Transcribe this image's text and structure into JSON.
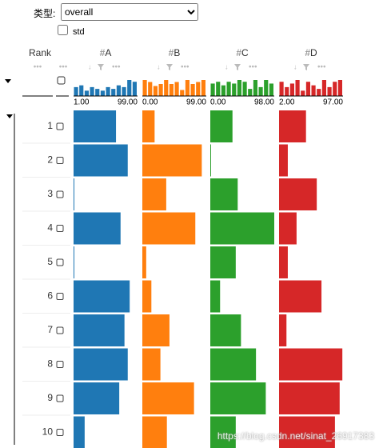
{
  "controls": {
    "type_label": "类型:",
    "type_value": "overall",
    "std_label": "std"
  },
  "rank": {
    "header": "Rank",
    "values": [
      1,
      2,
      3,
      4,
      5,
      6,
      7,
      8,
      9,
      10
    ]
  },
  "columns": [
    {
      "icon": "#",
      "name": "A",
      "color": "#1f77b4",
      "min": {
        "value": 1,
        "label": "1.00"
      },
      "max": {
        "value": 99,
        "label": "99.00"
      },
      "histogram": [
        5,
        6,
        3,
        5,
        4,
        3,
        5,
        4,
        6,
        5,
        9,
        8
      ],
      "values": [
        66,
        84,
        2,
        73,
        2,
        87,
        79,
        84,
        71,
        18
      ]
    },
    {
      "icon": "#",
      "name": "B",
      "color": "#ff7f0e",
      "min": {
        "value": 0,
        "label": "0.00"
      },
      "max": {
        "value": 99,
        "label": "99.00"
      },
      "histogram": [
        8,
        7,
        5,
        6,
        8,
        6,
        7,
        3,
        8,
        6,
        7,
        8
      ],
      "values": [
        19,
        92,
        37,
        82,
        6,
        14,
        42,
        28,
        80,
        38
      ]
    },
    {
      "icon": "#",
      "name": "C",
      "color": "#2ca02c",
      "min": {
        "value": 0,
        "label": "0.00"
      },
      "max": {
        "value": 98,
        "label": "98.00"
      },
      "histogram": [
        7,
        8,
        6,
        8,
        7,
        9,
        8,
        4,
        9,
        5,
        9,
        7
      ],
      "values": [
        34,
        1,
        42,
        98,
        39,
        15,
        47,
        70,
        85,
        39
      ]
    },
    {
      "icon": "#",
      "name": "D",
      "color": "#d62728",
      "min": {
        "value": 2,
        "label": "2.00"
      },
      "max": {
        "value": 97,
        "label": "97.00"
      },
      "histogram": [
        8,
        5,
        7,
        9,
        3,
        8,
        6,
        4,
        9,
        5,
        8,
        9
      ],
      "values": [
        42,
        15,
        58,
        28,
        15,
        65,
        13,
        96,
        92,
        85
      ]
    }
  ],
  "watermark": "https://blog.csdn.net/sinat_26917383"
}
